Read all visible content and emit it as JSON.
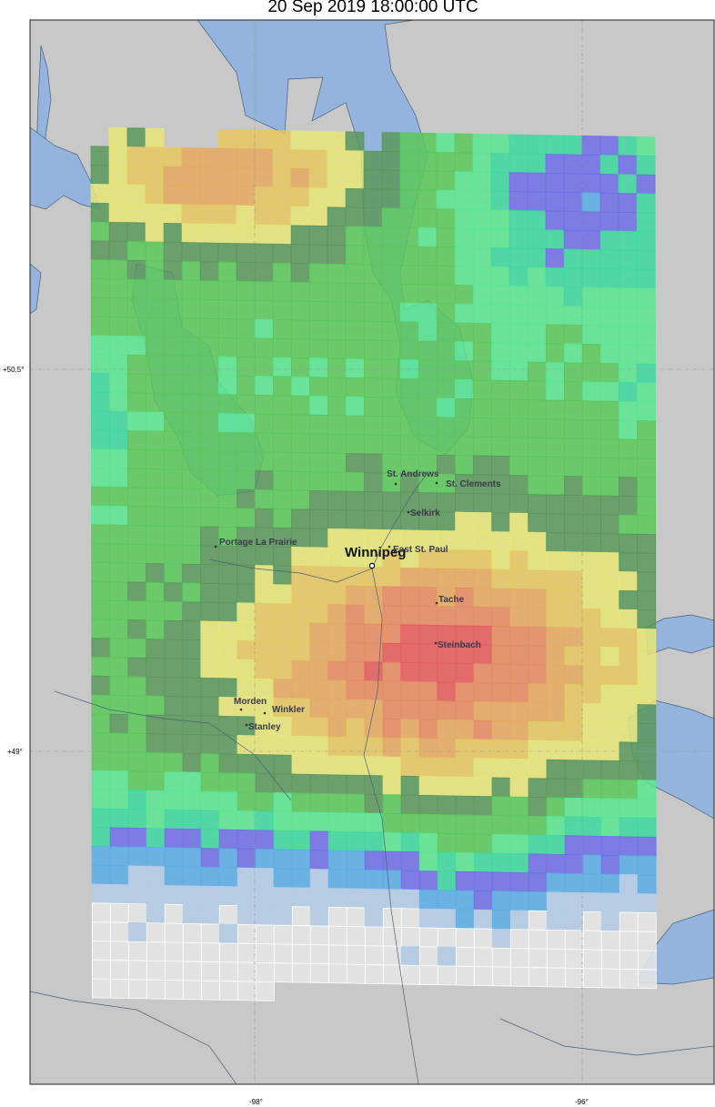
{
  "title": "20 Sep 2019 18:00:00 UTC",
  "axes": {
    "lat_labels": [
      "+50.5°",
      "+49°"
    ],
    "lon_labels": [
      "-98°",
      "-96°"
    ]
  },
  "colors": {
    "land": "#c8c8c8",
    "water": "#94b4de",
    "coast": "#4a5f7a",
    "colormap": [
      "#e6e6e6",
      "#b2cce8",
      "#5aaee6",
      "#6e6ee6",
      "#3ed8a0",
      "#5ae690",
      "#5ac85a",
      "#5a985a",
      "#e6e678",
      "#e6c860",
      "#e6aa60",
      "#e68c60",
      "#e65a5a"
    ]
  },
  "cities": [
    {
      "name": "Winnipeg",
      "major": true
    },
    {
      "name": "St. Andrews"
    },
    {
      "name": "St. Clements"
    },
    {
      "name": "Selkirk"
    },
    {
      "name": "East St. Paul"
    },
    {
      "name": "Portage La Prairie"
    },
    {
      "name": "Tache"
    },
    {
      "name": "Steinbach"
    },
    {
      "name": "Morden"
    },
    {
      "name": "Winkler"
    },
    {
      "name": "Stanley"
    }
  ]
}
